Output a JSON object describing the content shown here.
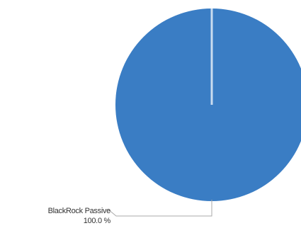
{
  "chart_data": {
    "type": "pie",
    "slices": [
      {
        "label": "BlackRock Passive",
        "value": 100.0,
        "value_text": "100.0 %",
        "color": "#3a7dc4"
      }
    ],
    "title": "",
    "legend": "none"
  }
}
